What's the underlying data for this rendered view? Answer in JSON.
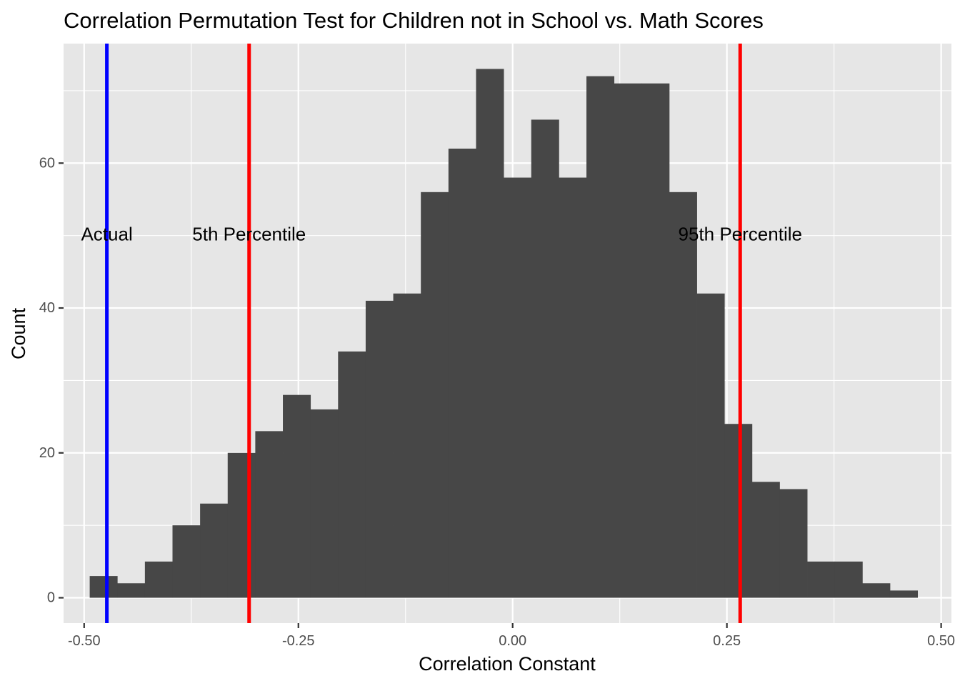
{
  "chart_data": {
    "type": "bar",
    "title": "Correlation Permutation Test for Children not in School vs. Math Scores",
    "xlabel": "Correlation Constant",
    "ylabel": "Count",
    "xlim": [
      -0.524,
      0.512
    ],
    "ylim": [
      -3.5,
      76.5
    ],
    "grid": true,
    "x_ticks": [
      {
        "value": -0.5,
        "label": "-0.50"
      },
      {
        "value": -0.25,
        "label": "-0.25"
      },
      {
        "value": 0.0,
        "label": "0.00"
      },
      {
        "value": 0.25,
        "label": "0.25"
      },
      {
        "value": 0.5,
        "label": "0.50"
      }
    ],
    "y_ticks": [
      {
        "value": 0,
        "label": "0"
      },
      {
        "value": 20,
        "label": "20"
      },
      {
        "value": 40,
        "label": "40"
      },
      {
        "value": 60,
        "label": "60"
      }
    ],
    "bin_width": 0.0322,
    "bin_start": -0.4935,
    "counts": [
      3,
      2,
      5,
      10,
      13,
      20,
      23,
      28,
      26,
      34,
      41,
      42,
      56,
      62,
      73,
      58,
      66,
      58,
      72,
      71,
      71,
      56,
      42,
      24,
      16,
      15,
      5,
      5,
      2,
      1
    ],
    "bar_color": "#474747",
    "vlines": [
      {
        "x": -0.4735,
        "color": "#0000ff",
        "label": "Actual"
      },
      {
        "x": -0.3075,
        "color": "#ff0000",
        "label": "5th Percentile"
      },
      {
        "x": 0.2655,
        "color": "#ff0000",
        "label": "95th Percentile"
      }
    ],
    "label_y": 50
  }
}
